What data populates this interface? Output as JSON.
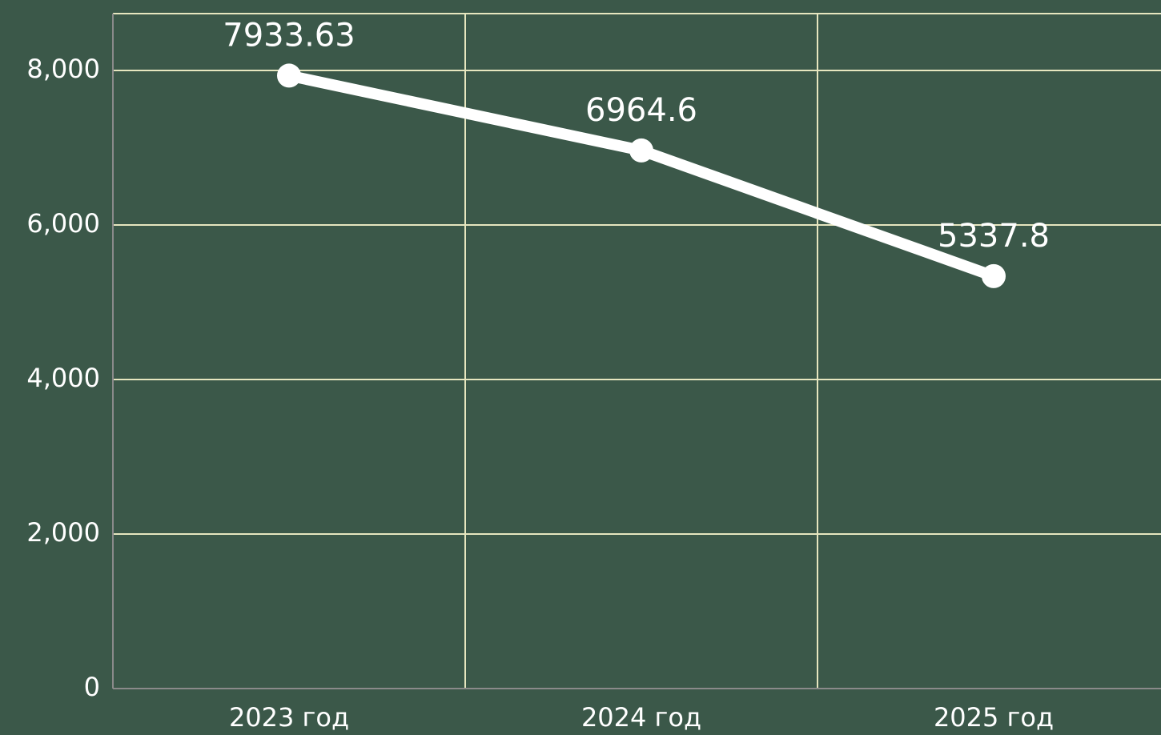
{
  "chart_data": {
    "type": "line",
    "categories": [
      "2023 год",
      "2024 год",
      "2025 год"
    ],
    "series": [
      {
        "color": "#ffffff",
        "values": [
          7933.63,
          6964.6,
          5337.8
        ]
      }
    ],
    "ylim": [
      0,
      8736
    ],
    "yticks": [
      0,
      {
        "value": 2000,
        "label": "2,000"
      },
      {
        "value": 4000,
        "label": "4,000"
      },
      {
        "value": 6000,
        "label": "6,000"
      },
      {
        "value": 8000,
        "label": "8,000"
      }
    ],
    "grid": true,
    "data_labels": true
  }
}
